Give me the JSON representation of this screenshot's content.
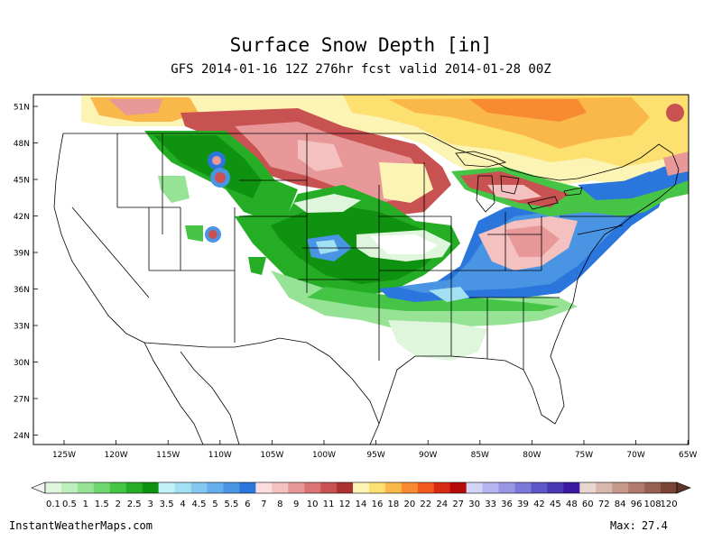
{
  "title": "Surface Snow Depth [in]",
  "subtitle": "GFS 2014-01-16 12Z 276hr fcst valid 2014-01-28 00Z",
  "lat_ticks": [
    "51N",
    "48N",
    "45N",
    "42N",
    "39N",
    "36N",
    "33N",
    "30N",
    "27N",
    "24N"
  ],
  "lon_ticks": [
    "125W",
    "120W",
    "115W",
    "110W",
    "105W",
    "100W",
    "95W",
    "90W",
    "85W",
    "80W",
    "75W",
    "70W",
    "65W"
  ],
  "colorbar": {
    "labels": [
      "0.1",
      "0.5",
      "1",
      "1.5",
      "2",
      "2.5",
      "3",
      "3.5",
      "4",
      "4.5",
      "5",
      "5.5",
      "6",
      "7",
      "8",
      "9",
      "10",
      "11",
      "12",
      "14",
      "16",
      "18",
      "20",
      "22",
      "24",
      "27",
      "30",
      "33",
      "36",
      "39",
      "42",
      "45",
      "48",
      "60",
      "72",
      "84",
      "96",
      "108",
      "120"
    ],
    "colors": [
      "#dff5dc",
      "#bdeebd",
      "#96e396",
      "#6ed66e",
      "#46c446",
      "#26ad26",
      "#0f920f",
      "#c2f2f8",
      "#a2e0f4",
      "#84c8f0",
      "#64aeec",
      "#4a94e4",
      "#2a76dc",
      "#fbdede",
      "#f4c0c0",
      "#e89898",
      "#dc7474",
      "#c85252",
      "#aa3232",
      "#fcf4b4",
      "#fce070",
      "#fbb84a",
      "#f88a32",
      "#f05a1e",
      "#d82a12",
      "#b40a0a",
      "#d4d4f4",
      "#b6b4ee",
      "#9896e4",
      "#7a78d8",
      "#5c58c8",
      "#4a38b4",
      "#3a1aa0",
      "#e8d6d0",
      "#d8b8ae",
      "#c6988c",
      "#b07a6e",
      "#986052",
      "#7a4536"
    ]
  },
  "credit": "InstantWeatherMaps.com",
  "max_label": "Max:",
  "max_value": "27.4"
}
